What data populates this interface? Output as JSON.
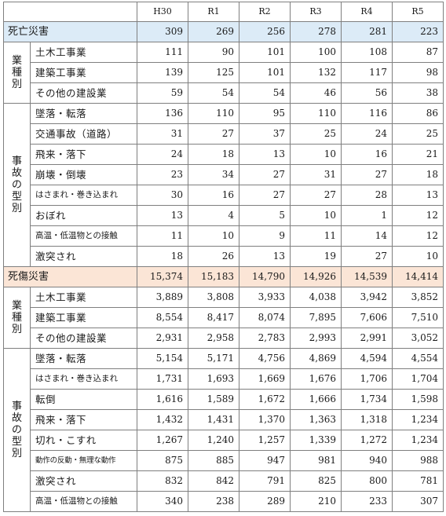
{
  "header": {
    "years": [
      "H30",
      "R1",
      "R2",
      "R3",
      "R4",
      "R5"
    ]
  },
  "death": {
    "total_label": "死亡災害",
    "total_values": [
      "309",
      "269",
      "256",
      "278",
      "281",
      "223"
    ],
    "industry_group_label": "業種別",
    "industry_rows": [
      {
        "label": "土木工事業",
        "values": [
          "111",
          "90",
          "101",
          "100",
          "108",
          "87"
        ]
      },
      {
        "label": "建築工事業",
        "values": [
          "139",
          "125",
          "101",
          "132",
          "117",
          "98"
        ]
      },
      {
        "label": "その他の建設業",
        "values": [
          "59",
          "54",
          "54",
          "46",
          "56",
          "38"
        ]
      }
    ],
    "accident_group_label": "事故の型別",
    "accident_rows": [
      {
        "label": "墜落・転落",
        "values": [
          "136",
          "110",
          "95",
          "110",
          "116",
          "86"
        ]
      },
      {
        "label": "交通事故（道路）",
        "values": [
          "31",
          "27",
          "37",
          "25",
          "24",
          "25"
        ]
      },
      {
        "label": "飛来・落下",
        "values": [
          "24",
          "18",
          "13",
          "10",
          "16",
          "21"
        ]
      },
      {
        "label": "崩壊・倒壊",
        "values": [
          "23",
          "34",
          "27",
          "31",
          "27",
          "18"
        ]
      },
      {
        "label": "はさまれ・巻き込まれ",
        "values": [
          "30",
          "16",
          "27",
          "27",
          "28",
          "13"
        ]
      },
      {
        "label": "おぼれ",
        "values": [
          "13",
          "4",
          "5",
          "10",
          "1",
          "12"
        ]
      },
      {
        "label": "高温・低温物との接触",
        "values": [
          "11",
          "10",
          "9",
          "11",
          "14",
          "12"
        ]
      },
      {
        "label": "激突され",
        "values": [
          "18",
          "26",
          "13",
          "19",
          "27",
          "10"
        ]
      }
    ]
  },
  "injury": {
    "total_label": "死傷災害",
    "total_values": [
      "15,374",
      "15,183",
      "14,790",
      "14,926",
      "14,539",
      "14,414"
    ],
    "industry_group_label": "業種別",
    "industry_rows": [
      {
        "label": "土木工事業",
        "values": [
          "3,889",
          "3,808",
          "3,933",
          "4,038",
          "3,942",
          "3,852"
        ]
      },
      {
        "label": "建築工事業",
        "values": [
          "8,554",
          "8,417",
          "8,074",
          "7,895",
          "7,606",
          "7,510"
        ]
      },
      {
        "label": "その他の建設業",
        "values": [
          "2,931",
          "2,958",
          "2,783",
          "2,993",
          "2,991",
          "3,052"
        ]
      }
    ],
    "accident_group_label": "事故の型別",
    "accident_rows": [
      {
        "label": "墜落・転落",
        "values": [
          "5,154",
          "5,171",
          "4,756",
          "4,869",
          "4,594",
          "4,554"
        ]
      },
      {
        "label": "はさまれ・巻き込まれ",
        "values": [
          "1,731",
          "1,693",
          "1,669",
          "1,676",
          "1,706",
          "1,704"
        ]
      },
      {
        "label": "転倒",
        "values": [
          "1,616",
          "1,589",
          "1,672",
          "1,666",
          "1,734",
          "1,598"
        ]
      },
      {
        "label": "飛来・落下",
        "values": [
          "1,432",
          "1,431",
          "1,370",
          "1,363",
          "1,318",
          "1,234"
        ]
      },
      {
        "label": "切れ・こすれ",
        "values": [
          "1,267",
          "1,240",
          "1,257",
          "1,339",
          "1,272",
          "1,234"
        ]
      },
      {
        "label": "動作の反動・無理な動作",
        "values": [
          "875",
          "885",
          "947",
          "981",
          "940",
          "988"
        ]
      },
      {
        "label": "激突され",
        "values": [
          "832",
          "842",
          "791",
          "825",
          "800",
          "781"
        ]
      },
      {
        "label": "高温・低温物との接触",
        "values": [
          "340",
          "238",
          "289",
          "210",
          "233",
          "307"
        ]
      }
    ]
  }
}
